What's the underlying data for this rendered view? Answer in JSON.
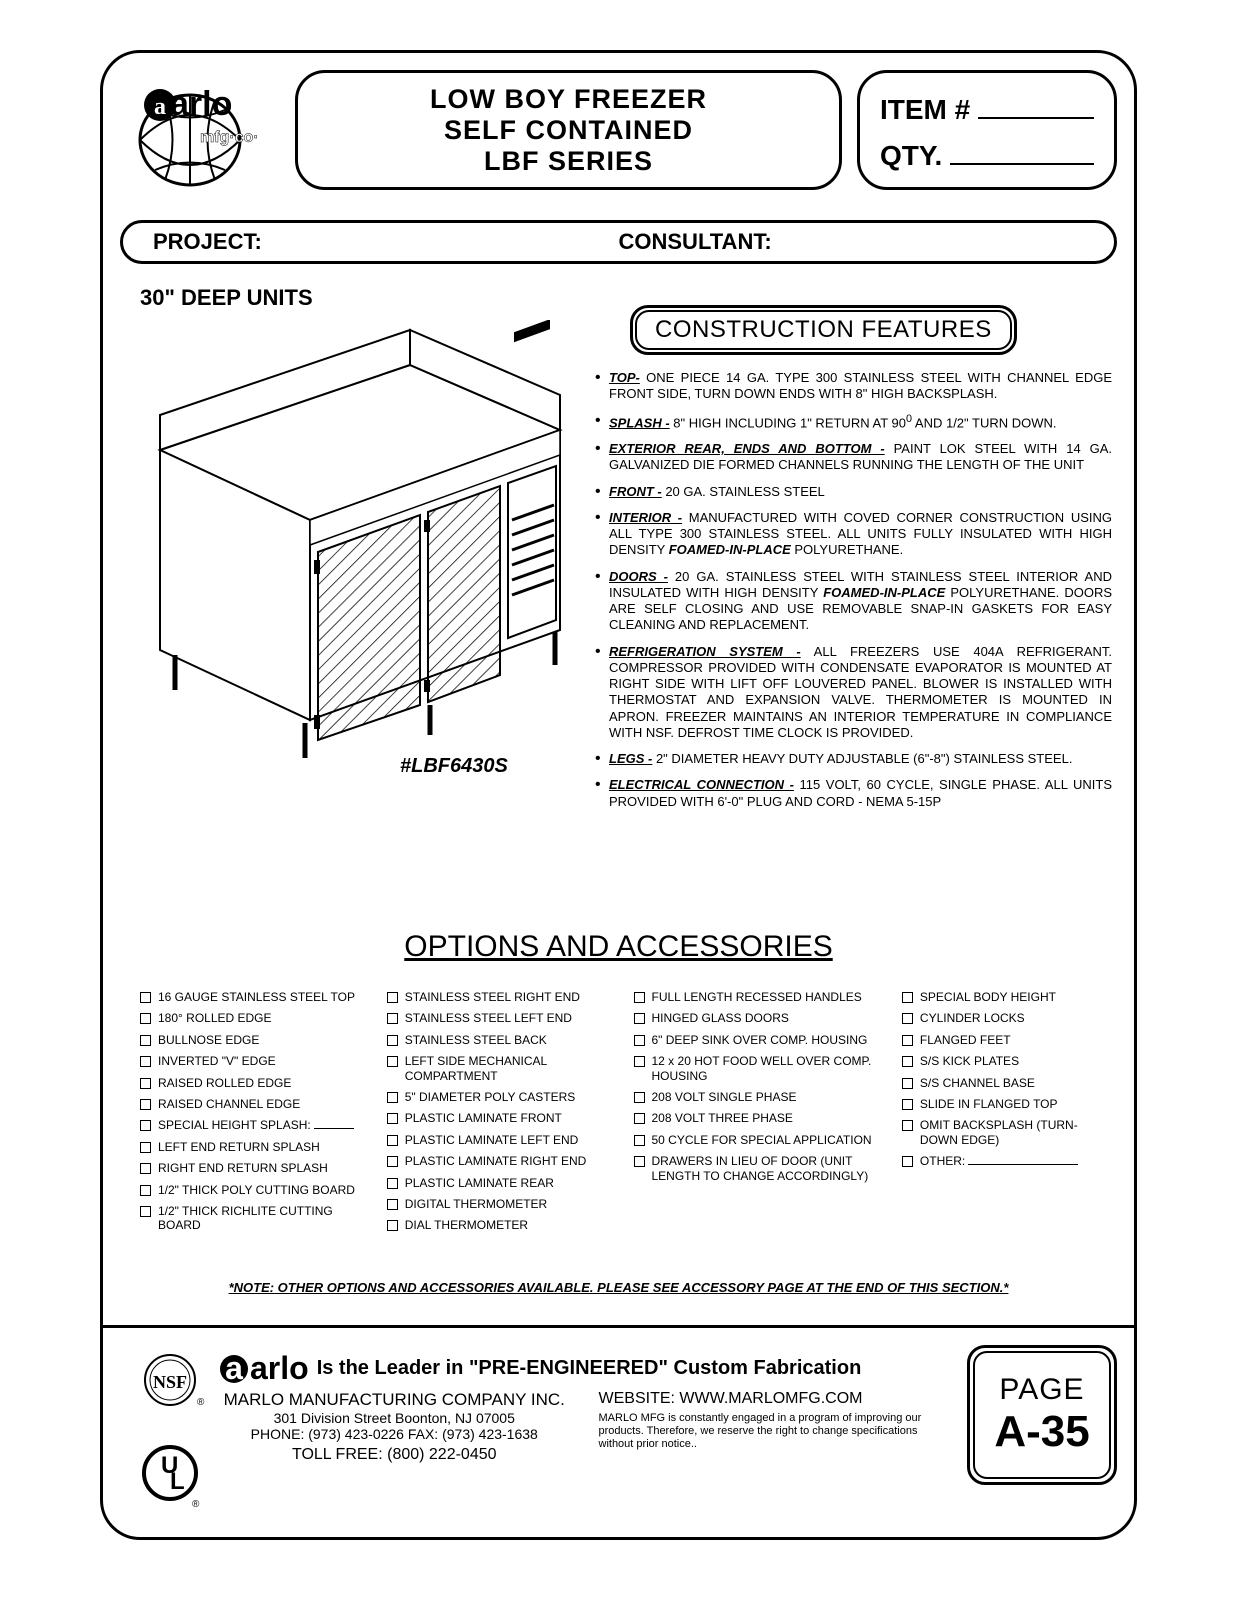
{
  "header": {
    "title_line1": "LOW BOY FREEZER",
    "title_line2": "SELF  CONTAINED",
    "title_line3": "LBF  SERIES",
    "item_label": "ITEM #",
    "qty_label": "QTY."
  },
  "proj_bar": {
    "project": "PROJECT:",
    "consultant": "CONSULTANT:"
  },
  "deep_units": "30\" DEEP UNITS",
  "cf_title": "CONSTRUCTION FEATURES",
  "model": "#LBF6430S",
  "features": {
    "f1a": "TOP-",
    "f1b": "  ONE PIECE 14 GA. TYPE 300 STAINLESS STEEL WITH CHANNEL EDGE FRONT SIDE, TURN DOWN ENDS WITH 8\" HIGH BACKSPLASH.",
    "f2a": "SPLASH -",
    "f2b": " 8\" HIGH INCLUDING 1\" RETURN AT 90",
    "f2c": "0",
    "f2d": " AND 1/2\"  TURN DOWN.",
    "f3a": "EXTERIOR REAR, ENDS AND BOTTOM -",
    "f3b": " PAINT LOK STEEL WITH 14 GA. GALVANIZED DIE FORMED CHANNELS RUNNING THE LENGTH OF THE UNIT",
    "f4a": "FRONT -",
    "f4b": " 20 GA. STAINLESS STEEL",
    "f5a": "INTERIOR -",
    "f5b": " MANUFACTURED WITH COVED CORNER CONSTRUCTION USING ALL TYPE 300 STAINLESS STEEL. ALL UNITS FULLY INSULATED WITH HIGH DENSITY ",
    "f5c": "FOAMED-IN-PLACE",
    "f5d": " POLYURETHANE.",
    "f6a": "DOORS -",
    "f6b": " 20 GA. STAINLESS STEEL WITH STAINLESS STEEL INTERIOR AND INSULATED WITH HIGH DENSITY ",
    "f6c": "FOAMED-IN-PLACE",
    "f6d": " POLYURETHANE. DOORS ARE SELF CLOSING AND USE REMOVABLE SNAP-IN GASKETS FOR EASY CLEANING AND REPLACEMENT.",
    "f7a": "REFRIGERATION SYSTEM -",
    "f7b": " ALL FREEZERS USE 404A REFRIGERANT. COMPRESSOR PROVIDED WITH CONDENSATE EVAPORATOR IS MOUNTED AT RIGHT SIDE WITH LIFT OFF LOUVERED PANEL. BLOWER IS INSTALLED WITH THERMOSTAT AND EXPANSION VALVE. THERMOMETER IS MOUNTED IN APRON. FREEZER MAINTAINS AN INTERIOR TEMPERATURE IN COMPLIANCE WITH NSF. DEFROST TIME CLOCK IS PROVIDED.",
    "f8a": "LEGS -",
    "f8b": " 2\" DIAMETER HEAVY DUTY ADJUSTABLE (6\"-8\") STAINLESS STEEL.",
    "f9a": "ELECTRICAL CONNECTION -",
    "f9b": " 115 VOLT, 60 CYCLE, SINGLE PHASE. ALL UNITS PROVIDED WITH 6'-0\" PLUG AND CORD - NEMA 5-15P"
  },
  "options_title": "OPTIONS AND ACCESSORIES",
  "options": {
    "col1": [
      "16 GAUGE STAINLESS STEEL TOP",
      "180° ROLLED EDGE",
      "BULLNOSE EDGE",
      "INVERTED \"V\" EDGE",
      "RAISED ROLLED EDGE",
      "RAISED CHANNEL EDGE",
      "SPECIAL HEIGHT SPLASH:",
      "LEFT END RETURN SPLASH",
      "RIGHT END RETURN SPLASH",
      "1/2\" THICK POLY CUTTING BOARD",
      "1/2\" THICK RICHLITE CUTTING BOARD"
    ],
    "col2": [
      "STAINLESS STEEL RIGHT END",
      "STAINLESS STEEL LEFT END",
      "STAINLESS STEEL BACK",
      "LEFT SIDE MECHANICAL COMPARTMENT",
      "5\" DIAMETER POLY CASTERS",
      "PLASTIC LAMINATE FRONT",
      "PLASTIC LAMINATE LEFT END",
      "PLASTIC LAMINATE RIGHT END",
      "PLASTIC LAMINATE REAR",
      "DIGITAL THERMOMETER",
      "DIAL THERMOMETER"
    ],
    "col3": [
      "FULL LENGTH RECESSED HANDLES",
      "HINGED GLASS DOORS",
      "6\" DEEP SINK OVER COMP. HOUSING",
      "12 x 20 HOT FOOD WELL OVER COMP. HOUSING",
      "208 VOLT SINGLE PHASE",
      "208 VOLT THREE PHASE",
      "50 CYCLE FOR SPECIAL APPLICATION",
      "DRAWERS IN LIEU OF DOOR (UNIT LENGTH TO CHANGE ACCORDINGLY)"
    ],
    "col4": [
      "SPECIAL BODY HEIGHT",
      "CYLINDER LOCKS",
      "FLANGED FEET",
      "S/S KICK PLATES",
      "S/S CHANNEL BASE",
      "SLIDE IN FLANGED TOP",
      "OMIT BACKSPLASH (TURN-DOWN EDGE)",
      "OTHER:"
    ]
  },
  "note": "*NOTE:  OTHER OPTIONS AND ACCESSORIES AVAILABLE.  PLEASE SEE ACCESSORY PAGE AT THE END OF THIS SECTION.*",
  "footer": {
    "brand_prefix": "a",
    "brand_rest": "arlo",
    "tagline": " Is the Leader in \"PRE-ENGINEERED\" Custom Fabrication",
    "company": "MARLO MANUFACTURING COMPANY INC.",
    "address": "301 Division Street    Boonton, NJ 07005",
    "phone": "PHONE: (973) 423-0226  FAX: (973) 423-1638",
    "tollfree": "TOLL FREE: (800) 222-0450",
    "website": "WEBSITE: WWW.MARLOMFG.COM",
    "disclaimer": "MARLO MFG is constantly engaged in a program of improving our products. Therefore, we reserve the right   to change specifications without prior notice..",
    "page_label": "PAGE",
    "page_num": "A-35"
  }
}
